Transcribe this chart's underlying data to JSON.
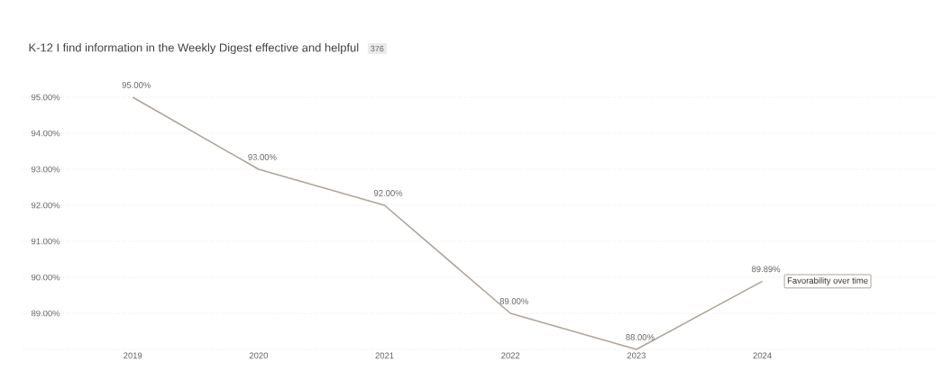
{
  "chart_data": {
    "type": "line",
    "title": "K-12 I find information in the Weekly Digest effective and helpful",
    "annotations": [
      "376"
    ],
    "categories": [
      "2019",
      "2020",
      "2021",
      "2022",
      "2023",
      "2024"
    ],
    "series": [
      {
        "name": "Favorability over time",
        "color": "#aea499",
        "values": [
          95,
          93,
          92,
          89,
          88,
          89.89
        ]
      }
    ],
    "value_labels": [
      "95.00%",
      "93.00%",
      "92.00%",
      "89.00%",
      "88.00%",
      "89.89%"
    ],
    "ylim": [
      88,
      95
    ],
    "yticks": [
      {
        "value": 88,
        "label": null
      },
      {
        "value": 89,
        "label": "89.00%"
      },
      {
        "value": 90,
        "label": "90.00%"
      },
      {
        "value": 91,
        "label": "91.00%"
      },
      {
        "value": 92,
        "label": "92.00%"
      },
      {
        "value": 93,
        "label": "93.00%"
      },
      {
        "value": 94,
        "label": "94.00%"
      },
      {
        "value": 95,
        "label": "95.00%"
      }
    ],
    "grid": "y",
    "legend": "right",
    "marker": "none",
    "line_style": "solid"
  }
}
